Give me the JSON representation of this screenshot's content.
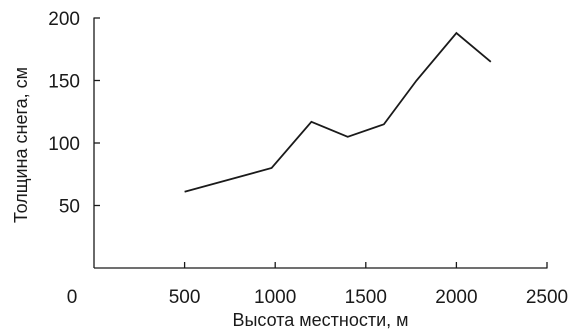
{
  "chart_data": {
    "type": "line",
    "xlabel": "Высота местности, м",
    "ylabel": "Толщина снега, см",
    "xlim": [
      0,
      2500
    ],
    "ylim": [
      0,
      200
    ],
    "x_ticks": [
      0,
      500,
      1000,
      1500,
      2000,
      2500
    ],
    "x_tick_labels": [
      "0",
      "500",
      "1000",
      "1500",
      "2000",
      "2500"
    ],
    "y_ticks": [
      50,
      100,
      150,
      200
    ],
    "y_tick_labels": [
      "50",
      "100",
      "150",
      "200"
    ],
    "grid": false,
    "series": [
      {
        "x": [
          500,
          980,
          1200,
          1400,
          1600,
          1780,
          2000,
          2190
        ],
        "y": [
          61,
          80,
          117,
          105,
          115,
          150,
          188,
          165
        ],
        "color": "#1a1a1a"
      }
    ]
  }
}
